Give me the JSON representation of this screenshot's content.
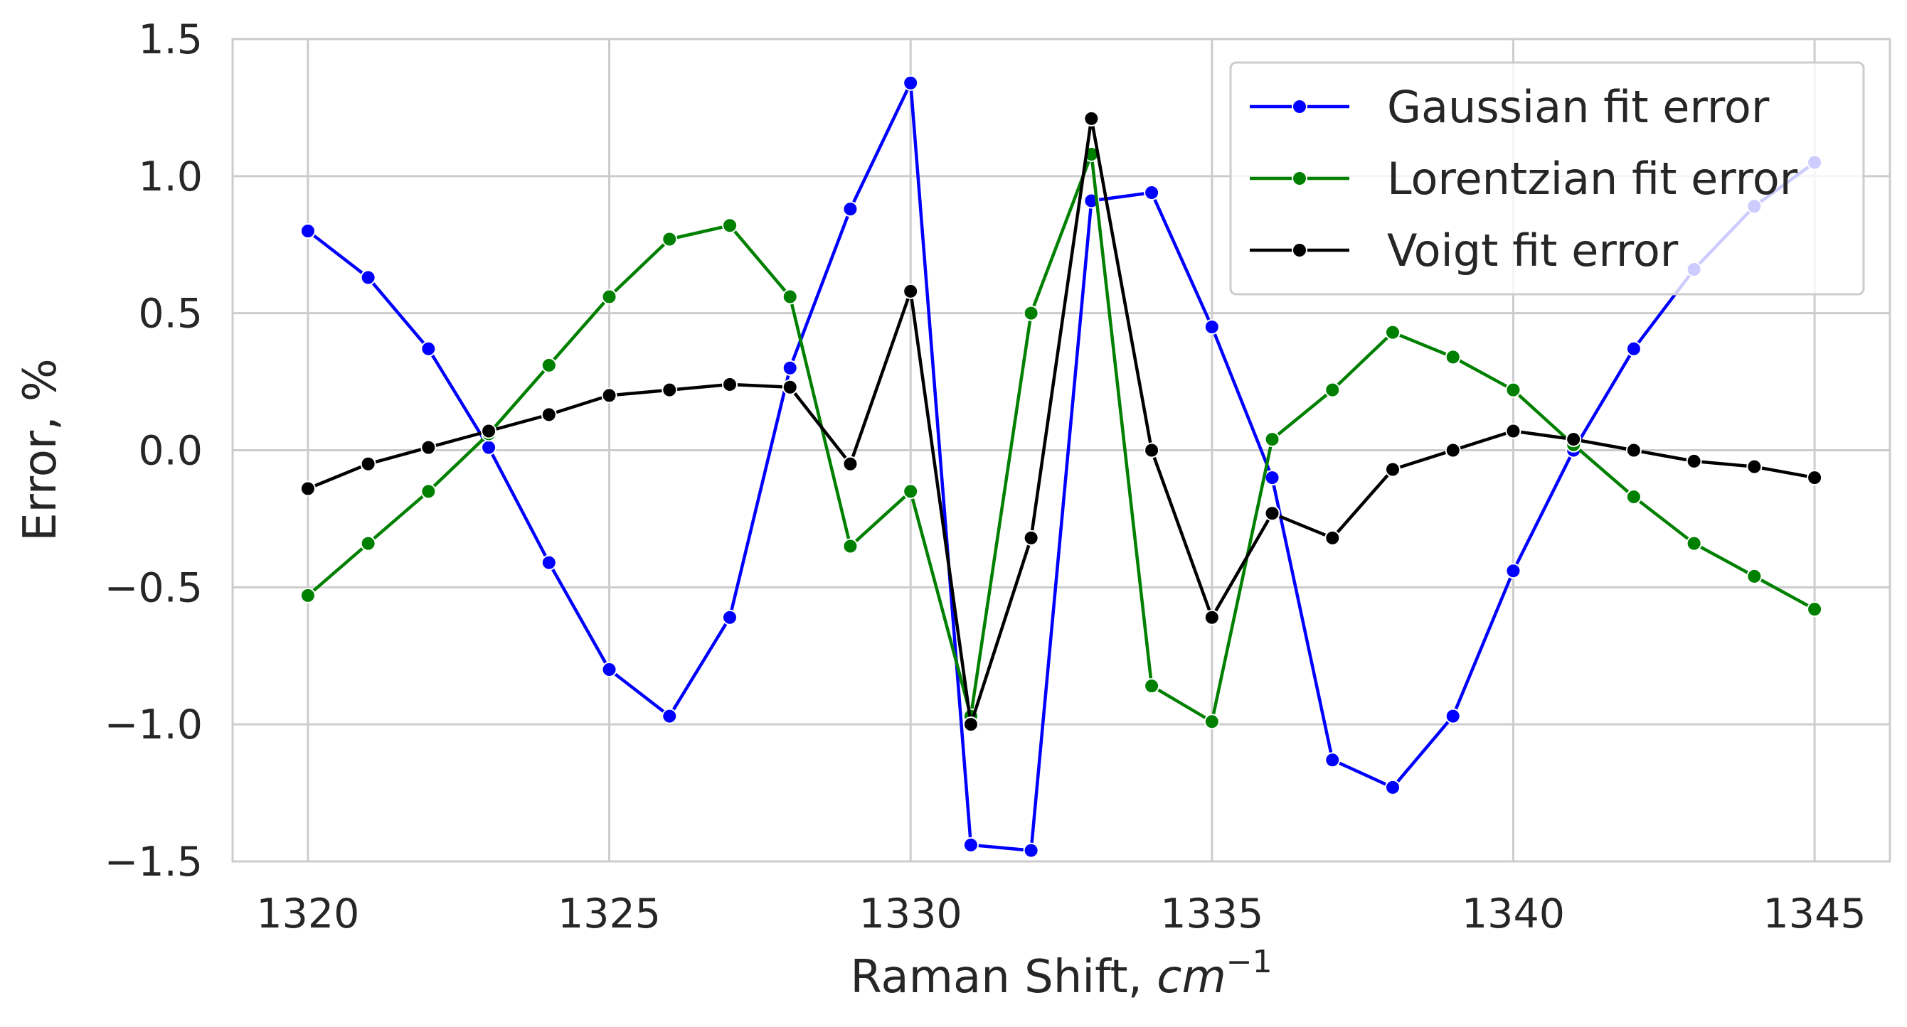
{
  "chart_data": {
    "type": "line",
    "xlabel": "Raman Shift, ",
    "xlabel_unit": "cm",
    "xlabel_unit_exponent": "−1",
    "ylabel": "Error, %",
    "xlim": [
      1318.75,
      1346.25
    ],
    "ylim": [
      -1.5,
      1.5
    ],
    "xticks": [
      1320,
      1325,
      1330,
      1335,
      1340,
      1345
    ],
    "xtick_labels": [
      "1320",
      "1325",
      "1330",
      "1335",
      "1340",
      "1345"
    ],
    "yticks": [
      -1.5,
      -1.0,
      -0.5,
      0.0,
      0.5,
      1.0,
      1.5
    ],
    "ytick_labels": [
      "−1.5",
      "−1.0",
      "−0.5",
      "0.0",
      "0.5",
      "1.0",
      "1.5"
    ],
    "grid": true,
    "legend_position": "top-right",
    "x": [
      1320,
      1321,
      1322,
      1323,
      1324,
      1325,
      1326,
      1327,
      1328,
      1329,
      1330,
      1331,
      1332,
      1333,
      1334,
      1335,
      1336,
      1337,
      1338,
      1339,
      1340,
      1341,
      1342,
      1343,
      1344,
      1345
    ],
    "series": [
      {
        "name": "Gaussian fit error",
        "color": "#0000ff",
        "values": [
          0.8,
          0.63,
          0.37,
          0.01,
          -0.41,
          -0.8,
          -0.97,
          -0.61,
          0.3,
          0.88,
          1.34,
          -1.44,
          -1.46,
          0.91,
          0.94,
          0.45,
          -0.1,
          -1.13,
          -1.23,
          -0.97,
          -0.44,
          0.0,
          0.37,
          0.66,
          0.89,
          1.05
        ]
      },
      {
        "name": "Lorentzian fit error",
        "color": "#008000",
        "values": [
          -0.53,
          -0.34,
          -0.15,
          0.06,
          0.31,
          0.56,
          0.77,
          0.82,
          0.56,
          -0.35,
          -0.15,
          -0.97,
          0.5,
          1.08,
          -0.86,
          -0.99,
          0.04,
          0.22,
          0.43,
          0.34,
          0.22,
          0.02,
          -0.17,
          -0.34,
          -0.46,
          -0.58
        ]
      },
      {
        "name": "Voigt fit error",
        "color": "#000000",
        "values": [
          -0.14,
          -0.05,
          0.01,
          0.07,
          0.13,
          0.2,
          0.22,
          0.24,
          0.23,
          -0.05,
          0.58,
          -1.0,
          -0.32,
          1.21,
          0.0,
          -0.61,
          -0.23,
          -0.32,
          -0.07,
          0.0,
          0.07,
          0.04,
          0.0,
          -0.04,
          -0.06,
          -0.1
        ]
      }
    ]
  }
}
